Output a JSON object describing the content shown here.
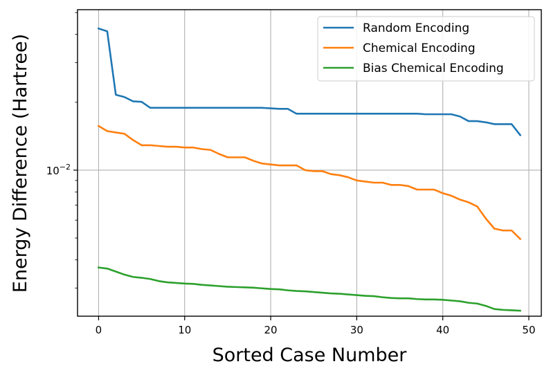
{
  "chart_data": {
    "type": "line",
    "xlabel": "Sorted Case Number",
    "ylabel": "Energy Difference (Hartree)",
    "xlim": [
      -2.45,
      51.45
    ],
    "ylim": [
      0.00225,
      0.0515
    ],
    "yscale": "log",
    "grid": true,
    "legend_position": "top-right",
    "x_ticks": [
      0,
      10,
      20,
      30,
      40,
      50
    ],
    "y_ticks": [
      {
        "value": 0.01,
        "label": "10^-2"
      }
    ],
    "x": [
      0,
      1,
      2,
      3,
      4,
      5,
      6,
      7,
      8,
      9,
      10,
      11,
      12,
      13,
      14,
      15,
      16,
      17,
      18,
      19,
      20,
      21,
      22,
      23,
      24,
      25,
      26,
      27,
      28,
      29,
      30,
      31,
      32,
      33,
      34,
      35,
      36,
      37,
      38,
      39,
      40,
      41,
      42,
      43,
      44,
      45,
      46,
      47,
      48,
      49
    ],
    "series": [
      {
        "name": "Random Encoding",
        "color": "#1f77b4",
        "values": [
          0.0425,
          0.0413,
          0.0216,
          0.0211,
          0.0202,
          0.0201,
          0.0189,
          0.0189,
          0.0189,
          0.0189,
          0.0189,
          0.0189,
          0.0189,
          0.0189,
          0.0189,
          0.0189,
          0.0189,
          0.0189,
          0.0189,
          0.0189,
          0.0188,
          0.0187,
          0.0187,
          0.0178,
          0.0178,
          0.0178,
          0.0178,
          0.0178,
          0.0178,
          0.0178,
          0.0178,
          0.0178,
          0.0178,
          0.0178,
          0.0178,
          0.0178,
          0.0178,
          0.0178,
          0.0177,
          0.0177,
          0.0177,
          0.0177,
          0.0173,
          0.0165,
          0.0165,
          0.0163,
          0.016,
          0.016,
          0.016,
          0.0143
        ]
      },
      {
        "name": "Chemical Encoding",
        "color": "#ff7f0e",
        "values": [
          0.0157,
          0.0149,
          0.0147,
          0.0145,
          0.0136,
          0.0129,
          0.0129,
          0.0128,
          0.0127,
          0.0127,
          0.0126,
          0.0126,
          0.0124,
          0.0123,
          0.0118,
          0.0114,
          0.0114,
          0.0114,
          0.011,
          0.0107,
          0.0106,
          0.0105,
          0.0105,
          0.0105,
          0.01,
          0.0099,
          0.0099,
          0.0096,
          0.0095,
          0.0093,
          0.009,
          0.0089,
          0.0088,
          0.0088,
          0.0086,
          0.0086,
          0.0085,
          0.0082,
          0.0082,
          0.0082,
          0.0079,
          0.0077,
          0.0074,
          0.0072,
          0.0069,
          0.0061,
          0.0055,
          0.0054,
          0.0054,
          0.00495
        ]
      },
      {
        "name": "Bias Chemical Encoding",
        "color": "#2ca02c",
        "values": [
          0.0037,
          0.00366,
          0.00355,
          0.00344,
          0.00336,
          0.00333,
          0.00329,
          0.00322,
          0.00318,
          0.00316,
          0.00314,
          0.00313,
          0.0031,
          0.00308,
          0.00306,
          0.00304,
          0.00303,
          0.00302,
          0.00301,
          0.00299,
          0.00297,
          0.00296,
          0.00293,
          0.00291,
          0.0029,
          0.00288,
          0.00286,
          0.00284,
          0.00283,
          0.00281,
          0.00279,
          0.00277,
          0.00276,
          0.00273,
          0.00271,
          0.0027,
          0.0027,
          0.00268,
          0.00267,
          0.00267,
          0.00266,
          0.00264,
          0.00262,
          0.00258,
          0.00256,
          0.0025,
          0.00242,
          0.0024,
          0.00239,
          0.00238
        ]
      }
    ]
  }
}
